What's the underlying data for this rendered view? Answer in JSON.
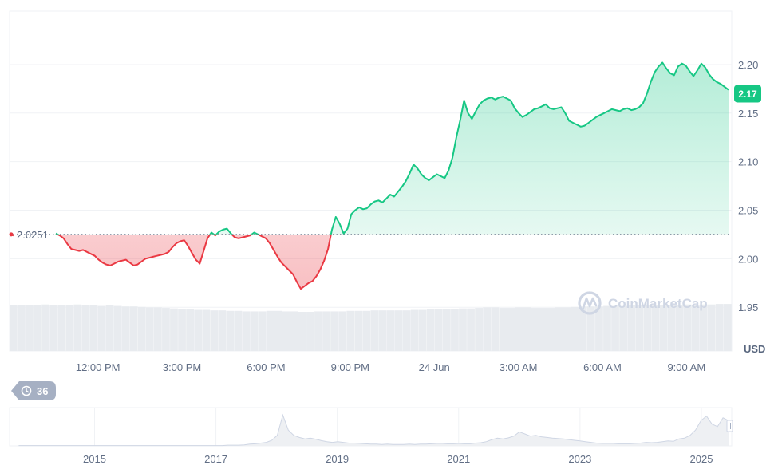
{
  "chart_data": {
    "type": "area",
    "unit": "USD",
    "reference_value": 2.0251,
    "reference_label": "2.0251",
    "current_value": 2.17,
    "current_label": "2.17",
    "ylim": [
      1.905,
      2.255
    ],
    "y_ticks": [
      "2.20",
      "2.15",
      "2.10",
      "2.05",
      "2.00",
      "1.95"
    ],
    "y_tick_values": [
      2.2,
      2.15,
      2.1,
      2.05,
      2.0,
      1.95
    ],
    "x_ticks": [
      "12:00 PM",
      "3:00 PM",
      "6:00 PM",
      "9:00 PM",
      "24 Jun",
      "3:00 AM",
      "6:00 AM",
      "9:00 AM"
    ],
    "x_tick_hours": [
      2.0,
      5.0,
      8.0,
      11.0,
      14.0,
      17.0,
      20.0,
      23.0
    ],
    "time_span_hours": 24.5,
    "series": [
      {
        "values": [
          2.026,
          2.024,
          2.021,
          2.015,
          2.01,
          2.009,
          2.008,
          2.009,
          2.007,
          2.005,
          2.003,
          1.999,
          1.996,
          1.994,
          1.993,
          1.995,
          1.997,
          1.998,
          1.999,
          1.996,
          1.993,
          1.994,
          1.997,
          2.0,
          2.001,
          2.002,
          2.003,
          2.004,
          2.005,
          2.007,
          2.012,
          2.016,
          2.018,
          2.019,
          2.013,
          2.006,
          1.999,
          1.995,
          2.008,
          2.021,
          2.027,
          2.024,
          2.028,
          2.03,
          2.031,
          2.026,
          2.022,
          2.021,
          2.022,
          2.023,
          2.024,
          2.027,
          2.025,
          2.023,
          2.021,
          2.016,
          2.009,
          2.002,
          1.996,
          1.992,
          1.988,
          1.984,
          1.976,
          1.969,
          1.972,
          1.975,
          1.977,
          1.982,
          1.989,
          1.998,
          2.01,
          2.03,
          2.043,
          2.036,
          2.026,
          2.031,
          2.046,
          2.05,
          2.053,
          2.051,
          2.052,
          2.056,
          2.059,
          2.06,
          2.058,
          2.062,
          2.066,
          2.064,
          2.069,
          2.074,
          2.08,
          2.088,
          2.097,
          2.093,
          2.087,
          2.083,
          2.081,
          2.084,
          2.087,
          2.085,
          2.083,
          2.091,
          2.104,
          2.125,
          2.143,
          2.163,
          2.15,
          2.144,
          2.152,
          2.159,
          2.163,
          2.165,
          2.166,
          2.164,
          2.166,
          2.167,
          2.165,
          2.163,
          2.155,
          2.15,
          2.146,
          2.148,
          2.151,
          2.154,
          2.155,
          2.157,
          2.159,
          2.155,
          2.154,
          2.155,
          2.156,
          2.15,
          2.142,
          2.14,
          2.138,
          2.136,
          2.137,
          2.14,
          2.143,
          2.146,
          2.148,
          2.15,
          2.152,
          2.154,
          2.153,
          2.152,
          2.154,
          2.155,
          2.153,
          2.154,
          2.156,
          2.16,
          2.17,
          2.182,
          2.192,
          2.198,
          2.202,
          2.196,
          2.191,
          2.189,
          2.198,
          2.201,
          2.199,
          2.193,
          2.188,
          2.194,
          2.201,
          2.197,
          2.19,
          2.185,
          2.182,
          2.18,
          2.177,
          2.174
        ]
      }
    ],
    "line_color_up": "#16c784",
    "line_color_down": "#ea3943",
    "volume": {
      "relative_values": [
        0.92,
        0.93,
        0.92,
        0.93,
        0.94,
        0.93,
        0.92,
        0.93,
        0.94,
        0.93,
        0.92,
        0.91,
        0.92,
        0.91,
        0.9,
        0.9,
        0.89,
        0.88,
        0.88,
        0.87,
        0.86,
        0.85,
        0.84,
        0.83,
        0.83,
        0.82,
        0.82,
        0.81,
        0.81,
        0.8,
        0.8,
        0.8,
        0.81,
        0.81,
        0.8,
        0.8,
        0.79,
        0.79,
        0.8,
        0.8,
        0.8,
        0.8,
        0.81,
        0.81,
        0.81,
        0.82,
        0.82,
        0.82,
        0.82,
        0.82,
        0.83,
        0.83,
        0.84,
        0.84,
        0.84,
        0.85,
        0.86,
        0.86,
        0.87,
        0.88,
        0.88,
        0.87,
        0.87,
        0.88,
        0.88,
        0.87,
        0.87,
        0.87,
        0.88,
        0.88,
        0.89,
        0.9,
        0.9,
        0.9,
        0.91,
        0.91,
        0.91,
        0.92,
        0.92,
        0.92,
        0.92,
        0.93,
        0.93,
        0.93,
        0.94,
        0.93,
        0.94,
        0.94,
        0.95,
        0.95
      ],
      "color": "#e8ebef"
    }
  },
  "navigator": {
    "x_ticks": [
      "2015",
      "2017",
      "2019",
      "2021",
      "2023",
      "2025"
    ],
    "x_tick_years": [
      2015,
      2017,
      2019,
      2021,
      2023,
      2025
    ],
    "year_range": [
      2013.6,
      2025.5
    ],
    "relative_values": [
      0.01,
      0.01,
      0.01,
      0.01,
      0.01,
      0.01,
      0.01,
      0.01,
      0.01,
      0.01,
      0.01,
      0.01,
      0.01,
      0.01,
      0.01,
      0.01,
      0.01,
      0.01,
      0.01,
      0.01,
      0.01,
      0.01,
      0.01,
      0.01,
      0.01,
      0.01,
      0.01,
      0.01,
      0.01,
      0.01,
      0.01,
      0.01,
      0.01,
      0.01,
      0.01,
      0.01,
      0.01,
      0.01,
      0.02,
      0.02,
      0.02,
      0.03,
      0.05,
      0.06,
      0.08,
      0.1,
      0.16,
      0.3,
      0.88,
      0.45,
      0.3,
      0.24,
      0.2,
      0.22,
      0.19,
      0.15,
      0.12,
      0.1,
      0.12,
      0.1,
      0.08,
      0.08,
      0.07,
      0.06,
      0.05,
      0.05,
      0.04,
      0.05,
      0.04,
      0.04,
      0.04,
      0.05,
      0.04,
      0.05,
      0.05,
      0.06,
      0.07,
      0.07,
      0.06,
      0.06,
      0.07,
      0.06,
      0.06,
      0.08,
      0.09,
      0.12,
      0.18,
      0.22,
      0.2,
      0.23,
      0.28,
      0.4,
      0.34,
      0.28,
      0.3,
      0.26,
      0.24,
      0.22,
      0.21,
      0.2,
      0.18,
      0.16,
      0.14,
      0.12,
      0.1,
      0.08,
      0.07,
      0.07,
      0.07,
      0.06,
      0.06,
      0.06,
      0.07,
      0.08,
      0.1,
      0.09,
      0.1,
      0.12,
      0.14,
      0.13,
      0.2,
      0.22,
      0.3,
      0.45,
      0.72,
      0.85,
      0.62,
      0.55,
      0.8,
      0.72
    ],
    "color": "#eef0f3",
    "line_color": "#cfd6e4"
  },
  "watermark": {
    "text": "CoinMarketCap",
    "icon": "coinmarketcap-logo-icon"
  },
  "history_button": {
    "label": "36",
    "icon": "clock-history-icon"
  },
  "colors": {
    "up": "#16c784",
    "down": "#ea3943",
    "up_fill": "#16c784",
    "down_fill": "#ea3943",
    "grid": "#f0f2f5",
    "badge": "#16c784",
    "history_bg": "#a6b0c3"
  }
}
